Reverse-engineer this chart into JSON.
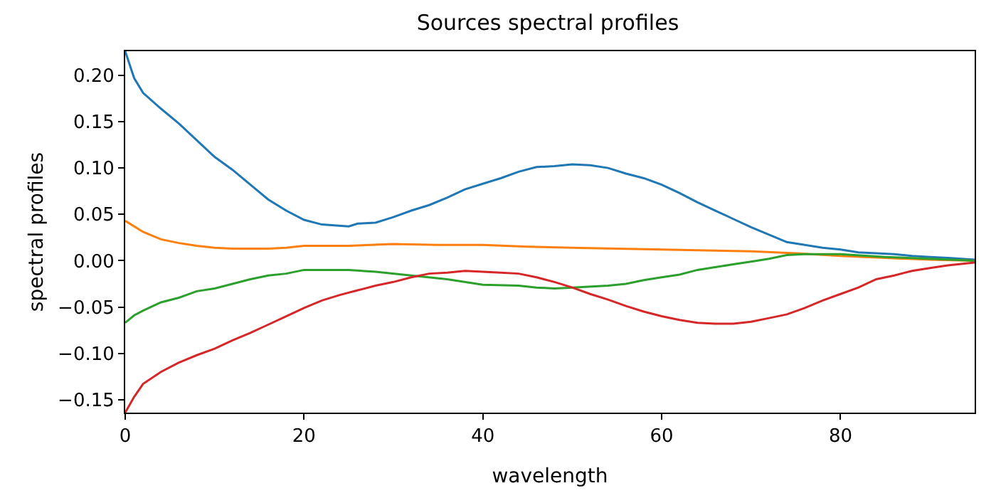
{
  "chart_data": {
    "type": "line",
    "title": "Sources spectral profiles",
    "xlabel": "wavelength",
    "ylabel": "spectral profiles",
    "xlim": [
      0,
      95
    ],
    "xticks": [
      0,
      20,
      40,
      60,
      80
    ],
    "ylim": [
      -0.164,
      0.226
    ],
    "yticks": [
      {
        "value": -0.15,
        "label": "−0.15"
      },
      {
        "value": -0.1,
        "label": "−0.10"
      },
      {
        "value": -0.05,
        "label": "−0.05"
      },
      {
        "value": 0,
        "label": "0.00"
      },
      {
        "value": 0.05,
        "label": "0.05"
      },
      {
        "value": 0.1,
        "label": "0.10"
      },
      {
        "value": 0.15,
        "label": "0.15"
      },
      {
        "value": 0.2,
        "label": "0.20"
      }
    ],
    "marker": "none",
    "line_style": "solid",
    "series": [
      {
        "color": "#1f77b4",
        "x": [
          0,
          1,
          2,
          4,
          6,
          8,
          10,
          12,
          14,
          16,
          18,
          20,
          22,
          25,
          26,
          28,
          30,
          32,
          34,
          36,
          38,
          40,
          42,
          44,
          46,
          48,
          50,
          52,
          54,
          56,
          58,
          60,
          62,
          64,
          66,
          68,
          70,
          72,
          74,
          76,
          78,
          80,
          82,
          84,
          86,
          88,
          90,
          92,
          95
        ],
        "values": [
          0.226,
          0.197,
          0.181,
          0.164,
          0.148,
          0.13,
          0.112,
          0.098,
          0.082,
          0.066,
          0.054,
          0.044,
          0.039,
          0.037,
          0.04,
          0.041,
          0.047,
          0.054,
          0.06,
          0.068,
          0.077,
          0.083,
          0.089,
          0.096,
          0.101,
          0.102,
          0.104,
          0.103,
          0.1,
          0.094,
          0.089,
          0.082,
          0.073,
          0.063,
          0.054,
          0.045,
          0.036,
          0.028,
          0.02,
          0.017,
          0.014,
          0.012,
          0.009,
          0.008,
          0.007,
          0.005,
          0.004,
          0.003,
          0.001
        ]
      },
      {
        "color": "#ff7f0e",
        "x": [
          0,
          2,
          4,
          6,
          8,
          10,
          12,
          16,
          18,
          20,
          25,
          30,
          35,
          40,
          45,
          50,
          55,
          60,
          65,
          70,
          75,
          80,
          85,
          90,
          95
        ],
        "values": [
          0.043,
          0.031,
          0.023,
          0.019,
          0.016,
          0.014,
          0.013,
          0.013,
          0.014,
          0.016,
          0.016,
          0.018,
          0.017,
          0.017,
          0.015,
          0.014,
          0.013,
          0.012,
          0.011,
          0.01,
          0.008,
          0.005,
          0.003,
          0.001,
          0.0
        ]
      },
      {
        "color": "#2ca02c",
        "x": [
          0,
          1,
          2,
          4,
          6,
          8,
          10,
          12,
          14,
          16,
          18,
          20,
          25,
          28,
          32,
          36,
          40,
          44,
          46,
          48,
          50,
          54,
          56,
          58,
          60,
          62,
          64,
          66,
          68,
          70,
          72,
          74,
          76,
          78,
          80,
          85,
          90,
          95
        ],
        "values": [
          -0.067,
          -0.059,
          -0.054,
          -0.045,
          -0.04,
          -0.033,
          -0.03,
          -0.025,
          -0.02,
          -0.016,
          -0.014,
          -0.01,
          -0.01,
          -0.012,
          -0.016,
          -0.02,
          -0.026,
          -0.027,
          -0.029,
          -0.03,
          -0.029,
          -0.027,
          -0.025,
          -0.021,
          -0.018,
          -0.015,
          -0.01,
          -0.007,
          -0.004,
          -0.001,
          0.002,
          0.006,
          0.007,
          0.007,
          0.007,
          0.004,
          0.002,
          0.0
        ]
      },
      {
        "color": "#d62728",
        "x": [
          0,
          1,
          2,
          4,
          6,
          8,
          10,
          12,
          14,
          16,
          18,
          20,
          22,
          24,
          26,
          28,
          30,
          32,
          34,
          36,
          38,
          40,
          42,
          44,
          46,
          48,
          50,
          52,
          54,
          56,
          58,
          60,
          62,
          64,
          66,
          68,
          70,
          72,
          74,
          76,
          78,
          80,
          82,
          84,
          86,
          88,
          90,
          92,
          95
        ],
        "values": [
          -0.164,
          -0.147,
          -0.133,
          -0.12,
          -0.11,
          -0.102,
          -0.095,
          -0.086,
          -0.078,
          -0.069,
          -0.06,
          -0.051,
          -0.043,
          -0.037,
          -0.032,
          -0.027,
          -0.023,
          -0.018,
          -0.014,
          -0.013,
          -0.011,
          -0.012,
          -0.013,
          -0.014,
          -0.018,
          -0.023,
          -0.029,
          -0.036,
          -0.042,
          -0.049,
          -0.055,
          -0.06,
          -0.064,
          -0.067,
          -0.068,
          -0.068,
          -0.066,
          -0.062,
          -0.058,
          -0.051,
          -0.043,
          -0.036,
          -0.029,
          -0.02,
          -0.016,
          -0.011,
          -0.008,
          -0.005,
          -0.002
        ]
      }
    ]
  }
}
